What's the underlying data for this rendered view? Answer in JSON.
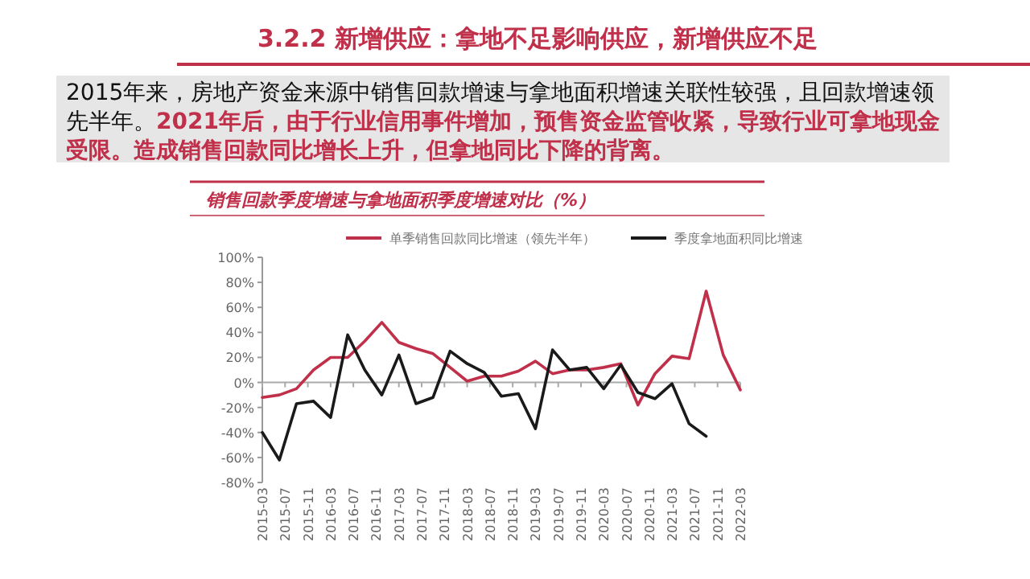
{
  "chart_data": {
    "type": "line",
    "title": "3.2.2 新增供应：拿地不足影响供应，新增供应不足",
    "subtitle": "销售回款季度增速与拿地面积季度增速对比（%）",
    "annotations": [
      "2015年来，房地产资金来源中销售回款增速与拿地面积增速关联性较强，且回款增速领先半年。",
      "2021年后，由于行业信用事件增加，预售资金监管收紧，导致行业可拿地现金受限。造成销售回款同比增长上升，但拿地同比下降的背离。"
    ],
    "x": [
      "2015-03",
      "2015-06",
      "2015-09",
      "2015-12",
      "2016-03",
      "2016-06",
      "2016-09",
      "2016-12",
      "2017-03",
      "2017-06",
      "2017-09",
      "2017-12",
      "2018-03",
      "2018-06",
      "2018-09",
      "2018-12",
      "2019-03",
      "2019-06",
      "2019-09",
      "2019-12",
      "2020-03",
      "2020-06",
      "2020-09",
      "2020-12",
      "2021-03",
      "2021-06",
      "2021-09",
      "2021-12",
      "2022-03"
    ],
    "series": [
      {
        "name": "单季销售回款同比增速（领先半年）",
        "color": "#c0304a",
        "values": [
          -12,
          -10,
          -5,
          10,
          20,
          20,
          33,
          48,
          32,
          27,
          23,
          12,
          1,
          5,
          5,
          9,
          17,
          7,
          10,
          10,
          12,
          15,
          -18,
          7,
          21,
          19,
          73,
          22,
          -6
        ]
      },
      {
        "name": "季度拿地面积同比增速",
        "color": "#1a1a1a",
        "values": [
          -40,
          -62,
          -17,
          -15,
          -28,
          38,
          10,
          -10,
          22,
          -17,
          -12,
          25,
          15,
          8,
          -11,
          -9,
          -37,
          26,
          10,
          12,
          -5,
          14,
          -8,
          -13,
          -1,
          -33,
          -43,
          null,
          null
        ]
      }
    ],
    "xlim": [
      "2015-03",
      "2022-03"
    ],
    "xticks": [
      "2015-03",
      "2015-07",
      "2015-11",
      "2016-03",
      "2016-07",
      "2016-11",
      "2017-03",
      "2017-07",
      "2017-11",
      "2018-03",
      "2018-07",
      "2018-11",
      "2019-03",
      "2019-07",
      "2019-11",
      "2020-03",
      "2020-07",
      "2020-11",
      "2021-03",
      "2021-07",
      "2021-11",
      "2022-03"
    ],
    "ylim": [
      -80,
      100
    ],
    "yticks": [
      {
        "value": -80,
        "label": "-80%"
      },
      {
        "value": -60,
        "label": "-60%"
      },
      {
        "value": -40,
        "label": "-40%"
      },
      {
        "value": -20,
        "label": "-20%"
      },
      {
        "value": 0,
        "label": "0%"
      },
      {
        "value": 20,
        "label": "20%"
      },
      {
        "value": 40,
        "label": "40%"
      },
      {
        "value": 60,
        "label": "60%"
      },
      {
        "value": 80,
        "label": "80%"
      },
      {
        "value": 100,
        "label": "100%"
      }
    ],
    "legend": "top",
    "marker": "none",
    "line_style": "solid"
  }
}
